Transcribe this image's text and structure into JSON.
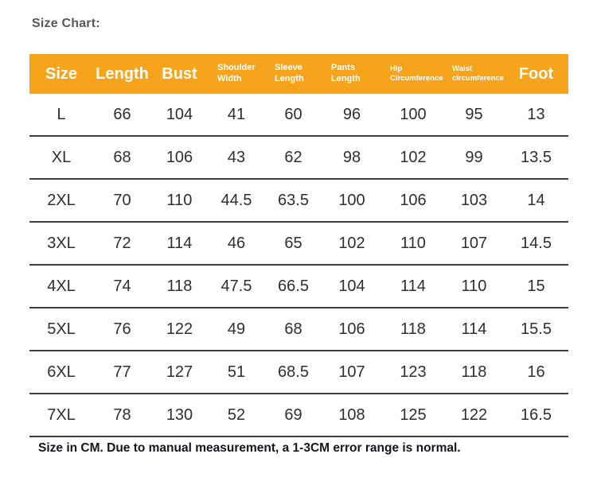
{
  "page": {
    "title": "Size Chart:",
    "footer_note": "Size in CM. Due to manual measurement, a 1-3CM error range is normal."
  },
  "colors": {
    "header_bg": "#F7A41D",
    "header_text": "#FFFFFF",
    "divider": "#3E3E40"
  },
  "table": {
    "headers": [
      {
        "label": "Size"
      },
      {
        "label": "Length"
      },
      {
        "label": "Bust"
      },
      {
        "label": "Shoulder Width"
      },
      {
        "label": "Sleeve Length"
      },
      {
        "label": "Pants Length"
      },
      {
        "label": "Hip Circumference"
      },
      {
        "label": "Waist circumference"
      },
      {
        "label": "Foot"
      }
    ],
    "rows": [
      {
        "cells": [
          "L",
          "66",
          "104",
          "41",
          "60",
          "96",
          "100",
          "95",
          "13"
        ]
      },
      {
        "cells": [
          "XL",
          "68",
          "106",
          "43",
          "62",
          "98",
          "102",
          "99",
          "13.5"
        ]
      },
      {
        "cells": [
          "2XL",
          "70",
          "110",
          "44.5",
          "63.5",
          "100",
          "106",
          "103",
          "14"
        ]
      },
      {
        "cells": [
          "3XL",
          "72",
          "114",
          "46",
          "65",
          "102",
          "110",
          "107",
          "14.5"
        ]
      },
      {
        "cells": [
          "4XL",
          "74",
          "118",
          "47.5",
          "66.5",
          "104",
          "114",
          "110",
          "15"
        ]
      },
      {
        "cells": [
          "5XL",
          "76",
          "122",
          "49",
          "68",
          "106",
          "118",
          "114",
          "15.5"
        ]
      },
      {
        "cells": [
          "6XL",
          "77",
          "127",
          "51",
          "68.5",
          "107",
          "123",
          "118",
          "16"
        ]
      },
      {
        "cells": [
          "7XL",
          "78",
          "130",
          "52",
          "69",
          "108",
          "125",
          "122",
          "16.5"
        ]
      }
    ]
  },
  "chart_data": {
    "type": "table",
    "title": "Size Chart:",
    "columns": [
      "Size",
      "Length",
      "Bust",
      "Shoulder Width",
      "Sleeve Length",
      "Pants Length",
      "Hip Circumference",
      "Waist circumference",
      "Foot"
    ],
    "rows": [
      [
        "L",
        66,
        104,
        41,
        60,
        96,
        100,
        95,
        13
      ],
      [
        "XL",
        68,
        106,
        43,
        62,
        98,
        102,
        99,
        13.5
      ],
      [
        "2XL",
        70,
        110,
        44.5,
        63.5,
        100,
        106,
        103,
        14
      ],
      [
        "3XL",
        72,
        114,
        46,
        65,
        102,
        110,
        107,
        14.5
      ],
      [
        "4XL",
        74,
        118,
        47.5,
        66.5,
        104,
        114,
        110,
        15
      ],
      [
        "5XL",
        76,
        122,
        49,
        68,
        106,
        118,
        114,
        15.5
      ],
      [
        "6XL",
        77,
        127,
        51,
        68.5,
        107,
        123,
        118,
        16
      ],
      [
        "7XL",
        78,
        130,
        52,
        69,
        108,
        125,
        122,
        16.5
      ]
    ],
    "units": "CM",
    "note": "Size in CM. Due to manual measurement, a 1-3CM error range is normal."
  }
}
